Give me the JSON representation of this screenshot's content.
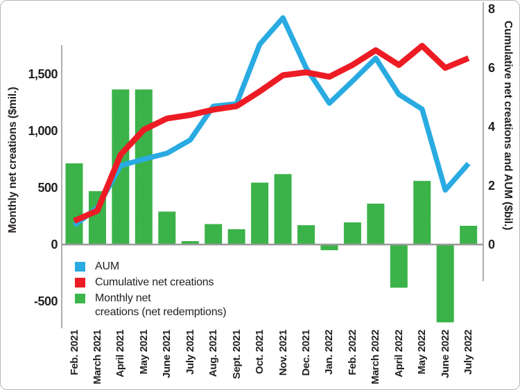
{
  "chart_data": {
    "type": "combo-bar-line",
    "categories": [
      "Feb. 2021",
      "March 2021",
      "April 2021",
      "May 2021",
      "June 2021",
      "July 2021",
      "Aug. 2021",
      "Sept. 2021",
      "Oct. 2021",
      "Nov. 2021",
      "Dec. 2021",
      "Jan. 2022",
      "Feb. 2022",
      "March 2022",
      "April 2022",
      "May 2022",
      "June 2022",
      "July 2022"
    ],
    "series": [
      {
        "name": "AUM",
        "kind": "line",
        "axis": "right",
        "color": "#29ABE2",
        "values": [
          0.65,
          1.25,
          2.68,
          2.9,
          3.1,
          3.55,
          4.7,
          4.78,
          6.8,
          7.7,
          6.0,
          4.8,
          5.55,
          6.33,
          5.1,
          4.6,
          1.85,
          2.75
        ]
      },
      {
        "name": "Cumulative net creations",
        "kind": "line",
        "axis": "right",
        "color": "#ED1C24",
        "values": [
          0.8,
          1.15,
          3.05,
          3.9,
          4.28,
          4.4,
          4.58,
          4.7,
          5.2,
          5.75,
          5.85,
          5.7,
          6.1,
          6.6,
          6.1,
          6.75,
          6.0,
          6.33
        ]
      },
      {
        "name": "Monthly net creations (net redemptions)",
        "kind": "bar",
        "axis": "left",
        "color": "#3CB54A",
        "values": [
          715,
          470,
          1365,
          1365,
          290,
          30,
          180,
          135,
          545,
          620,
          170,
          -50,
          195,
          360,
          -380,
          560,
          -685,
          165
        ]
      }
    ],
    "left_axis": {
      "label": "Monthly net creations ($mil.)",
      "tick_values": [
        1500,
        1000,
        500,
        0,
        -500
      ],
      "tick_labels": [
        "1,500",
        "1,000",
        "500",
        "0",
        "-500"
      ],
      "ylim": [
        -750,
        1750
      ]
    },
    "right_axis": {
      "label": "Cumulative net creations and AUM ($bil.)",
      "tick_values": [
        8,
        6,
        4,
        2,
        0
      ],
      "tick_labels": [
        "8",
        "6",
        "4",
        "2",
        "0"
      ],
      "ylim": [
        -1.25,
        8
      ]
    },
    "grid": false,
    "legend_position": "bottom-left-inside"
  },
  "legend": {
    "items": [
      {
        "swatch": "aum-swatch",
        "color": "#29ABE2",
        "lines": [
          "AUM"
        ]
      },
      {
        "swatch": "cumulative-swatch",
        "color": "#ED1C24",
        "lines": [
          "Cumulative net creations"
        ]
      },
      {
        "swatch": "monthly-swatch",
        "color": "#3CB54A",
        "lines": [
          "Monthly net",
          "creations (net redemptions)"
        ]
      }
    ]
  },
  "colors": {
    "axis_line": "#9a9a9a",
    "text": "#231f20",
    "background": "#ffffff"
  }
}
